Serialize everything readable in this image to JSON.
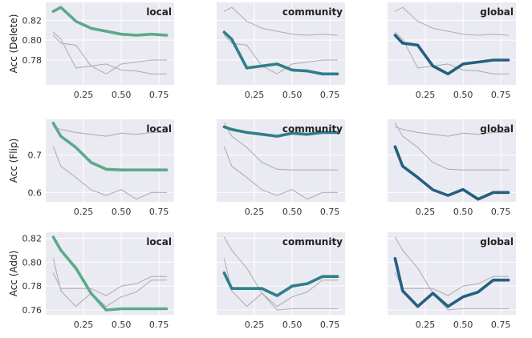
{
  "colors": {
    "panel_bg": "#eaeaf2",
    "grid": "#ffffff",
    "context_line": "#b0b0b0",
    "local": "#5da98a",
    "community": "#2e7f8a",
    "global": "#24607f"
  },
  "chart_data": [
    {
      "type": "line",
      "row_label": "Acc (Delete)",
      "ylim": [
        0.755,
        0.838
      ],
      "yticks": [
        0.78,
        0.8,
        0.82
      ],
      "ytick_labels": [
        "0.78",
        "0.80",
        "0.82"
      ],
      "xlim": [
        0.0,
        0.85
      ],
      "xticks": [
        0.25,
        0.5,
        0.75
      ],
      "xtick_labels": [
        "0.25",
        "0.50",
        "0.75"
      ],
      "grid": true,
      "panels": [
        {
          "title": "local",
          "highlight": "local",
          "x": [
            0.05,
            0.1,
            0.2,
            0.3,
            0.4,
            0.5,
            0.6,
            0.7,
            0.8
          ],
          "local": [
            0.829,
            0.833,
            0.819,
            0.812,
            0.809,
            0.806,
            0.805,
            0.806,
            0.805
          ],
          "community": [
            0.808,
            0.801,
            0.772,
            0.774,
            0.776,
            0.77,
            0.769,
            0.766,
            0.766
          ],
          "global": [
            0.805,
            0.797,
            0.795,
            0.774,
            0.766,
            0.776,
            0.778,
            0.78,
            0.78
          ]
        },
        {
          "title": "community",
          "highlight": "community",
          "x": [
            0.05,
            0.1,
            0.2,
            0.3,
            0.4,
            0.5,
            0.6,
            0.7,
            0.8
          ],
          "local": [
            0.829,
            0.833,
            0.819,
            0.812,
            0.809,
            0.806,
            0.805,
            0.806,
            0.805
          ],
          "community": [
            0.808,
            0.801,
            0.772,
            0.774,
            0.776,
            0.77,
            0.769,
            0.766,
            0.766
          ],
          "global": [
            0.805,
            0.797,
            0.795,
            0.774,
            0.766,
            0.776,
            0.778,
            0.78,
            0.78
          ]
        },
        {
          "title": "global",
          "highlight": "global",
          "x": [
            0.05,
            0.1,
            0.2,
            0.3,
            0.4,
            0.5,
            0.6,
            0.7,
            0.8
          ],
          "local": [
            0.829,
            0.833,
            0.819,
            0.812,
            0.809,
            0.806,
            0.805,
            0.806,
            0.805
          ],
          "community": [
            0.808,
            0.801,
            0.772,
            0.774,
            0.776,
            0.77,
            0.769,
            0.766,
            0.766
          ],
          "global": [
            0.805,
            0.797,
            0.795,
            0.774,
            0.766,
            0.776,
            0.778,
            0.78,
            0.78
          ]
        }
      ]
    },
    {
      "type": "line",
      "row_label": "Acc (Flip)",
      "ylim": [
        0.575,
        0.795
      ],
      "yticks": [
        0.6,
        0.7
      ],
      "ytick_labels": [
        "0.6",
        "0.7"
      ],
      "xlim": [
        0.0,
        0.85
      ],
      "xticks": [
        0.25,
        0.5,
        0.75
      ],
      "xtick_labels": [
        "0.25",
        "0.50",
        "0.75"
      ],
      "grid": true,
      "panels": [
        {
          "title": "local",
          "highlight": "local",
          "x": [
            0.05,
            0.1,
            0.2,
            0.3,
            0.4,
            0.5,
            0.6,
            0.7,
            0.8
          ],
          "local": [
            0.785,
            0.75,
            0.72,
            0.68,
            0.662,
            0.66,
            0.66,
            0.66,
            0.66
          ],
          "community": [
            0.775,
            0.768,
            0.76,
            0.755,
            0.75,
            0.758,
            0.755,
            0.76,
            0.76
          ],
          "global": [
            0.722,
            0.67,
            0.64,
            0.607,
            0.592,
            0.608,
            0.582,
            0.6,
            0.6
          ]
        },
        {
          "title": "community",
          "highlight": "community",
          "x": [
            0.05,
            0.1,
            0.2,
            0.3,
            0.4,
            0.5,
            0.6,
            0.7,
            0.8
          ],
          "local": [
            0.785,
            0.75,
            0.72,
            0.68,
            0.662,
            0.66,
            0.66,
            0.66,
            0.66
          ],
          "community": [
            0.775,
            0.768,
            0.76,
            0.755,
            0.75,
            0.758,
            0.755,
            0.76,
            0.76
          ],
          "global": [
            0.722,
            0.67,
            0.64,
            0.607,
            0.592,
            0.608,
            0.582,
            0.6,
            0.6
          ]
        },
        {
          "title": "global",
          "highlight": "global",
          "x": [
            0.05,
            0.1,
            0.2,
            0.3,
            0.4,
            0.5,
            0.6,
            0.7,
            0.8
          ],
          "local": [
            0.785,
            0.75,
            0.72,
            0.68,
            0.662,
            0.66,
            0.66,
            0.66,
            0.66
          ],
          "community": [
            0.775,
            0.768,
            0.76,
            0.755,
            0.75,
            0.758,
            0.755,
            0.76,
            0.76
          ],
          "global": [
            0.722,
            0.67,
            0.64,
            0.607,
            0.592,
            0.608,
            0.582,
            0.6,
            0.6
          ]
        }
      ]
    },
    {
      "type": "line",
      "row_label": "Acc (Add)",
      "ylim": [
        0.756,
        0.825
      ],
      "yticks": [
        0.76,
        0.78,
        0.8,
        0.82
      ],
      "ytick_labels": [
        "0.76",
        "0.78",
        "0.80",
        "0.82"
      ],
      "xlim": [
        0.0,
        0.85
      ],
      "xticks": [
        0.25,
        0.5,
        0.75
      ],
      "xtick_labels": [
        "0.25",
        "0.50",
        "0.75"
      ],
      "grid": true,
      "panels": [
        {
          "title": "local",
          "highlight": "local",
          "x": [
            0.05,
            0.1,
            0.2,
            0.3,
            0.4,
            0.5,
            0.6,
            0.7,
            0.8
          ],
          "local": [
            0.821,
            0.81,
            0.795,
            0.774,
            0.76,
            0.761,
            0.761,
            0.761,
            0.761
          ],
          "community": [
            0.791,
            0.778,
            0.778,
            0.778,
            0.772,
            0.78,
            0.782,
            0.788,
            0.788
          ],
          "global": [
            0.803,
            0.776,
            0.763,
            0.774,
            0.763,
            0.771,
            0.775,
            0.785,
            0.785
          ]
        },
        {
          "title": "community",
          "highlight": "community",
          "x": [
            0.05,
            0.1,
            0.2,
            0.3,
            0.4,
            0.5,
            0.6,
            0.7,
            0.8
          ],
          "local": [
            0.821,
            0.81,
            0.795,
            0.774,
            0.76,
            0.761,
            0.761,
            0.761,
            0.761
          ],
          "community": [
            0.791,
            0.778,
            0.778,
            0.778,
            0.772,
            0.78,
            0.782,
            0.788,
            0.788
          ],
          "global": [
            0.803,
            0.776,
            0.763,
            0.774,
            0.763,
            0.771,
            0.775,
            0.785,
            0.785
          ]
        },
        {
          "title": "global",
          "highlight": "global",
          "x": [
            0.05,
            0.1,
            0.2,
            0.3,
            0.4,
            0.5,
            0.6,
            0.7,
            0.8
          ],
          "local": [
            0.821,
            0.81,
            0.795,
            0.774,
            0.76,
            0.761,
            0.761,
            0.761,
            0.761
          ],
          "community": [
            0.791,
            0.778,
            0.778,
            0.778,
            0.772,
            0.78,
            0.782,
            0.788,
            0.788
          ],
          "global": [
            0.803,
            0.776,
            0.763,
            0.774,
            0.763,
            0.771,
            0.775,
            0.785,
            0.785
          ]
        }
      ]
    }
  ]
}
